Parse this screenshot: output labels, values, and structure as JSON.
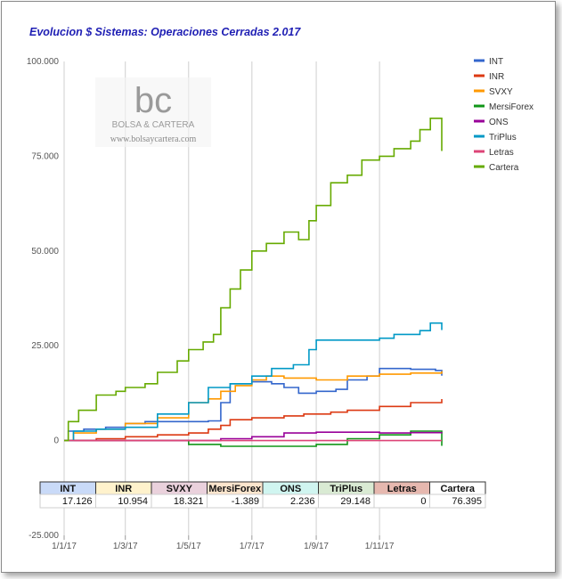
{
  "chart_data": {
    "type": "line",
    "title": "Evolucion $ Sistemas: Operaciones Cerradas 2.017",
    "y_ticks": [
      "100.000",
      "75.000",
      "50.000",
      "25.000",
      "0",
      "-25.000"
    ],
    "x_ticks": [
      "1/1/17",
      "1/3/17",
      "1/5/17",
      "1/7/17",
      "1/9/17",
      "1/11/17"
    ],
    "ylim": [
      -25000,
      100000
    ],
    "xlim": [
      "2017-01-01",
      "2017-12-31"
    ],
    "legend_position": "right",
    "grid": "vertical",
    "series": [
      {
        "name": "INT",
        "color": "#3366cc",
        "final": "17.126",
        "points": [
          [
            "2017-01-01",
            0
          ],
          [
            "2017-01-05",
            2500
          ],
          [
            "2017-01-20",
            3000
          ],
          [
            "2017-02-10",
            3500
          ],
          [
            "2017-03-01",
            4500
          ],
          [
            "2017-03-20",
            5000
          ],
          [
            "2017-04-10",
            5000
          ],
          [
            "2017-05-01",
            5000
          ],
          [
            "2017-05-20",
            5200
          ],
          [
            "2017-06-01",
            10000
          ],
          [
            "2017-06-10",
            15000
          ],
          [
            "2017-07-01",
            15500
          ],
          [
            "2017-07-20",
            15000
          ],
          [
            "2017-08-01",
            14000
          ],
          [
            "2017-08-15",
            12500
          ],
          [
            "2017-09-01",
            13000
          ],
          [
            "2017-09-20",
            13500
          ],
          [
            "2017-10-01",
            16000
          ],
          [
            "2017-10-20",
            17000
          ],
          [
            "2017-11-01",
            19000
          ],
          [
            "2017-12-01",
            18800
          ],
          [
            "2017-12-25",
            18500
          ],
          [
            "2017-12-31",
            17126
          ]
        ]
      },
      {
        "name": "INR",
        "color": "#dc3912",
        "final": "10.954",
        "points": [
          [
            "2017-01-01",
            0
          ],
          [
            "2017-02-01",
            500
          ],
          [
            "2017-03-01",
            1000
          ],
          [
            "2017-04-01",
            1500
          ],
          [
            "2017-05-01",
            2000
          ],
          [
            "2017-05-20",
            3000
          ],
          [
            "2017-06-01",
            4000
          ],
          [
            "2017-06-10",
            5500
          ],
          [
            "2017-07-01",
            6000
          ],
          [
            "2017-08-01",
            6500
          ],
          [
            "2017-08-20",
            7000
          ],
          [
            "2017-09-15",
            7500
          ],
          [
            "2017-10-01",
            8000
          ],
          [
            "2017-11-01",
            9000
          ],
          [
            "2017-12-01",
            10000
          ],
          [
            "2017-12-31",
            10954
          ]
        ]
      },
      {
        "name": "SVXY",
        "color": "#ff9900",
        "final": "18.321",
        "points": [
          [
            "2017-01-01",
            0
          ],
          [
            "2017-01-10",
            2000
          ],
          [
            "2017-02-01",
            3000
          ],
          [
            "2017-03-01",
            4500
          ],
          [
            "2017-04-01",
            6000
          ],
          [
            "2017-05-01",
            10000
          ],
          [
            "2017-05-20",
            11000
          ],
          [
            "2017-06-01",
            13000
          ],
          [
            "2017-06-15",
            14500
          ],
          [
            "2017-07-01",
            16000
          ],
          [
            "2017-07-15",
            17000
          ],
          [
            "2017-08-01",
            16500
          ],
          [
            "2017-09-01",
            16000
          ],
          [
            "2017-10-01",
            17000
          ],
          [
            "2017-11-01",
            17500
          ],
          [
            "2017-12-01",
            17800
          ],
          [
            "2017-12-31",
            18321
          ]
        ]
      },
      {
        "name": "MersiForex",
        "color": "#109618",
        "final": "-1.389",
        "points": [
          [
            "2017-01-01",
            0
          ],
          [
            "2017-02-01",
            0
          ],
          [
            "2017-04-01",
            0
          ],
          [
            "2017-05-01",
            -1000
          ],
          [
            "2017-06-01",
            -1500
          ],
          [
            "2017-07-01",
            -1500
          ],
          [
            "2017-08-01",
            -1500
          ],
          [
            "2017-09-01",
            -1000
          ],
          [
            "2017-10-01",
            500
          ],
          [
            "2017-11-01",
            1500
          ],
          [
            "2017-12-01",
            2500
          ],
          [
            "2017-12-25",
            2500
          ],
          [
            "2017-12-31",
            -1389
          ]
        ]
      },
      {
        "name": "ONS",
        "color": "#990099",
        "final": "2.236",
        "points": [
          [
            "2017-01-01",
            0
          ],
          [
            "2017-03-01",
            0
          ],
          [
            "2017-05-01",
            0
          ],
          [
            "2017-06-01",
            500
          ],
          [
            "2017-07-01",
            1000
          ],
          [
            "2017-08-01",
            2000
          ],
          [
            "2017-09-01",
            2200
          ],
          [
            "2017-10-01",
            2200
          ],
          [
            "2017-11-01",
            2000
          ],
          [
            "2017-12-01",
            2100
          ],
          [
            "2017-12-31",
            2236
          ]
        ]
      },
      {
        "name": "TriPlus",
        "color": "#0099c6",
        "final": "29.148",
        "points": [
          [
            "2017-01-01",
            0
          ],
          [
            "2017-01-10",
            2500
          ],
          [
            "2017-02-01",
            3000
          ],
          [
            "2017-03-01",
            3500
          ],
          [
            "2017-04-01",
            7000
          ],
          [
            "2017-05-01",
            10000
          ],
          [
            "2017-05-20",
            14000
          ],
          [
            "2017-06-10",
            15000
          ],
          [
            "2017-07-01",
            17000
          ],
          [
            "2017-07-20",
            19000
          ],
          [
            "2017-08-10",
            20000
          ],
          [
            "2017-08-25",
            24000
          ],
          [
            "2017-09-01",
            26500
          ],
          [
            "2017-10-01",
            26500
          ],
          [
            "2017-11-01",
            27000
          ],
          [
            "2017-11-15",
            28000
          ],
          [
            "2017-12-10",
            29000
          ],
          [
            "2017-12-20",
            31000
          ],
          [
            "2017-12-31",
            29148
          ]
        ]
      },
      {
        "name": "Letras",
        "color": "#dd4477",
        "final": "0",
        "points": [
          [
            "2017-01-01",
            0
          ],
          [
            "2017-12-31",
            0
          ]
        ]
      },
      {
        "name": "Cartera",
        "color": "#66aa00",
        "final": "76.395",
        "points": [
          [
            "2017-01-01",
            0
          ],
          [
            "2017-01-05",
            5000
          ],
          [
            "2017-01-15",
            8000
          ],
          [
            "2017-02-01",
            12000
          ],
          [
            "2017-02-20",
            13000
          ],
          [
            "2017-03-01",
            14000
          ],
          [
            "2017-03-20",
            15000
          ],
          [
            "2017-04-01",
            18000
          ],
          [
            "2017-04-20",
            21000
          ],
          [
            "2017-05-01",
            24000
          ],
          [
            "2017-05-15",
            26000
          ],
          [
            "2017-05-25",
            28000
          ],
          [
            "2017-06-01",
            35000
          ],
          [
            "2017-06-10",
            40000
          ],
          [
            "2017-06-20",
            45000
          ],
          [
            "2017-07-01",
            50000
          ],
          [
            "2017-07-15",
            52000
          ],
          [
            "2017-08-01",
            55000
          ],
          [
            "2017-08-15",
            53000
          ],
          [
            "2017-08-25",
            58000
          ],
          [
            "2017-09-01",
            62000
          ],
          [
            "2017-09-15",
            68000
          ],
          [
            "2017-10-01",
            70000
          ],
          [
            "2017-10-15",
            74000
          ],
          [
            "2017-11-01",
            75000
          ],
          [
            "2017-11-15",
            77000
          ],
          [
            "2017-12-01",
            79000
          ],
          [
            "2017-12-10",
            82000
          ],
          [
            "2017-12-20",
            85000
          ],
          [
            "2017-12-31",
            76395
          ]
        ]
      }
    ]
  },
  "watermark": {
    "logo": "bc",
    "name": "BOLSA & CARTERA",
    "url": "www.bolsaycartera.com"
  }
}
